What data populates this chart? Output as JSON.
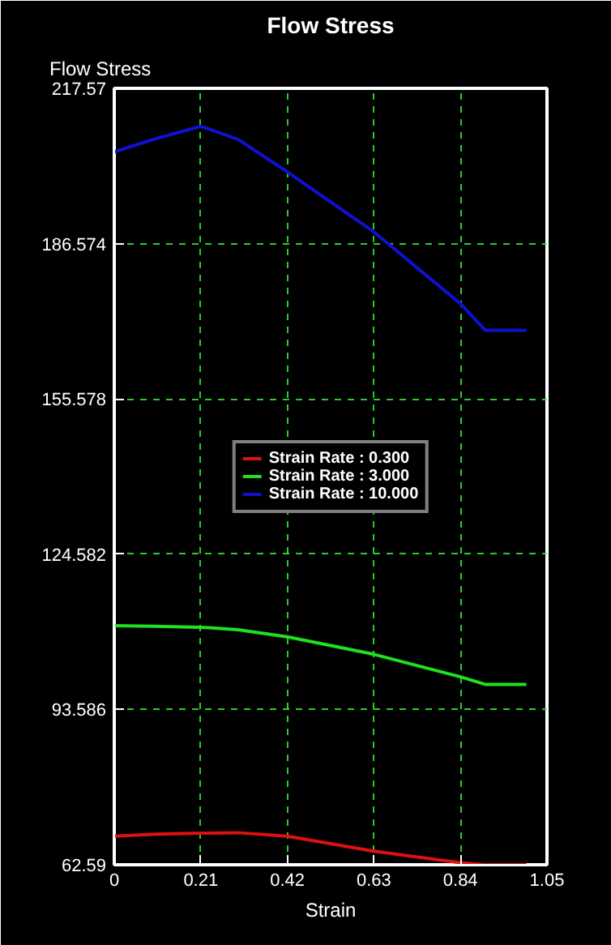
{
  "chart_data": {
    "type": "line",
    "title": "Flow Stress",
    "xlabel": "Strain",
    "ylabel": "Flow Stress",
    "x": [
      0,
      0.1,
      0.21,
      0.3,
      0.42,
      0.63,
      0.84,
      0.9,
      1.0
    ],
    "series": [
      {
        "name": "Strain Rate : 0.300",
        "color": "#e01010",
        "values": [
          68.3,
          68.7,
          68.9,
          69.0,
          68.3,
          65.3,
          63.0,
          62.6,
          62.6
        ]
      },
      {
        "name": "Strain Rate : 3.000",
        "color": "#20e020",
        "values": [
          110.3,
          110.2,
          110.0,
          109.5,
          108.1,
          104.6,
          100.1,
          98.6,
          98.6
        ]
      },
      {
        "name": "Strain Rate : 10.000",
        "color": "#1010d0",
        "values": [
          204.9,
          207.5,
          210.0,
          207.4,
          200.9,
          188.9,
          174.6,
          169.3,
          169.3
        ]
      }
    ],
    "xlim": [
      0,
      1.05
    ],
    "xticks": [
      0,
      0.21,
      0.42,
      0.63,
      0.84,
      1.05
    ],
    "ylim": [
      62.59,
      217.57
    ],
    "yticks": [
      62.59,
      93.586,
      124.582,
      155.578,
      186.574,
      217.57
    ],
    "grid": true,
    "legend": "center",
    "line_style": "solid"
  }
}
